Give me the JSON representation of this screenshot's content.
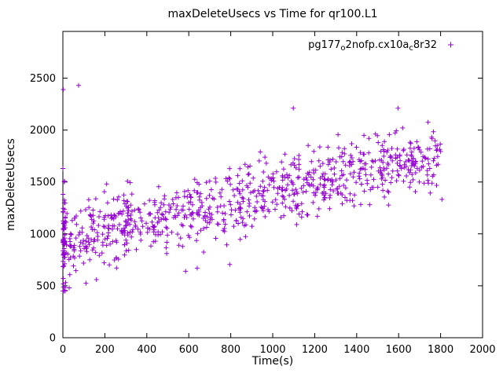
{
  "title": "maxDeleteUsecs vs Time for qr100.L1",
  "axes": {
    "xlabel": "Time(s)",
    "ylabel": "maxDeleteUsecs",
    "x_ticks": [
      0,
      200,
      400,
      600,
      800,
      1000,
      1200,
      1400,
      1600,
      1800,
      2000
    ],
    "y_ticks": [
      0,
      500,
      1000,
      1500,
      2000,
      2500
    ],
    "xlim": [
      0,
      2000
    ],
    "ylim": [
      0,
      2950
    ]
  },
  "legend": {
    "parts": {
      "p0": "pg177",
      "sub1": "o",
      "p1": "2nofp.cx10a",
      "sub2": "c",
      "p2": "8r32"
    },
    "marker": "+",
    "series_color": "#9400D3"
  },
  "chart_data": {
    "type": "scatter",
    "title": "maxDeleteUsecs vs Time for qr100.L1",
    "xlabel": "Time(s)",
    "ylabel": "maxDeleteUsecs",
    "xlim": [
      0,
      2000
    ],
    "ylim": [
      0,
      2950
    ],
    "x_tick_step": 200,
    "y_tick_step": 500,
    "grid": false,
    "legend_position": "top-right-inside",
    "series_name": "pg177_o2nofp.cx10a_c8r32",
    "marker": "plus",
    "color": "#9400D3",
    "trend": {
      "x_start": 0,
      "y_start": 930,
      "x_end": 1810,
      "y_end": 1765
    },
    "noise_sd": 160,
    "point_count": 850,
    "x_data_max": 1810,
    "y_min_observed": 450,
    "y_max_observed": 2430,
    "startup_cluster": {
      "x_max": 12,
      "count": 55,
      "y_center": 950,
      "y_sd": 280,
      "y_min": 450,
      "y_max": 1630
    },
    "outliers": [
      [
        2,
        2390
      ],
      [
        75,
        2430
      ],
      [
        0,
        1630
      ],
      [
        1098,
        2210
      ],
      [
        1597,
        2210
      ],
      [
        585,
        640
      ],
      [
        640,
        670
      ],
      [
        795,
        705
      ],
      [
        30,
        480
      ],
      [
        110,
        525
      ],
      [
        160,
        560
      ]
    ],
    "y_clamp_min": 445,
    "y_clamp_max": 2230,
    "seed": 20240731
  }
}
